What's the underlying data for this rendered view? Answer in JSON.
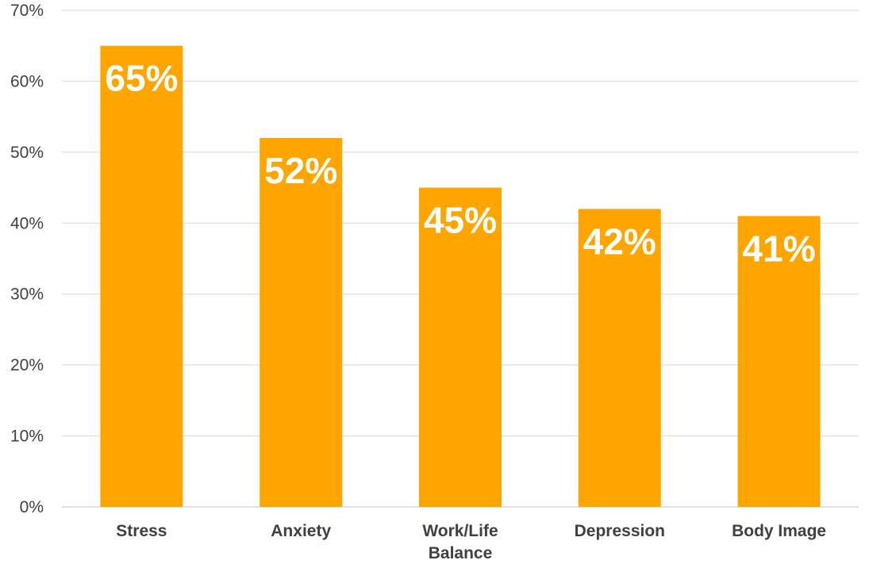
{
  "chart_data": {
    "type": "bar",
    "title": "",
    "xlabel": "",
    "ylabel": "",
    "categories": [
      "Stress",
      "Anxiety",
      "Work/Life Balance",
      "Depression",
      "Body Image"
    ],
    "category_lines": [
      [
        "Stress"
      ],
      [
        "Anxiety"
      ],
      [
        "Work/Life",
        "Balance"
      ],
      [
        "Depression"
      ],
      [
        "Body Image"
      ]
    ],
    "values": [
      65,
      52,
      45,
      42,
      41
    ],
    "value_labels": [
      "65%",
      "52%",
      "45%",
      "42%",
      "41%"
    ],
    "ylim": [
      0,
      70
    ],
    "y_ticks": [
      0,
      10,
      20,
      30,
      40,
      50,
      60,
      70
    ],
    "y_tick_labels": [
      "0%",
      "10%",
      "20%",
      "30%",
      "40%",
      "50%",
      "60%",
      "70%"
    ],
    "grid": true,
    "legend": "none",
    "bar_color": "#ffa500",
    "label_color": "#ffffff"
  }
}
